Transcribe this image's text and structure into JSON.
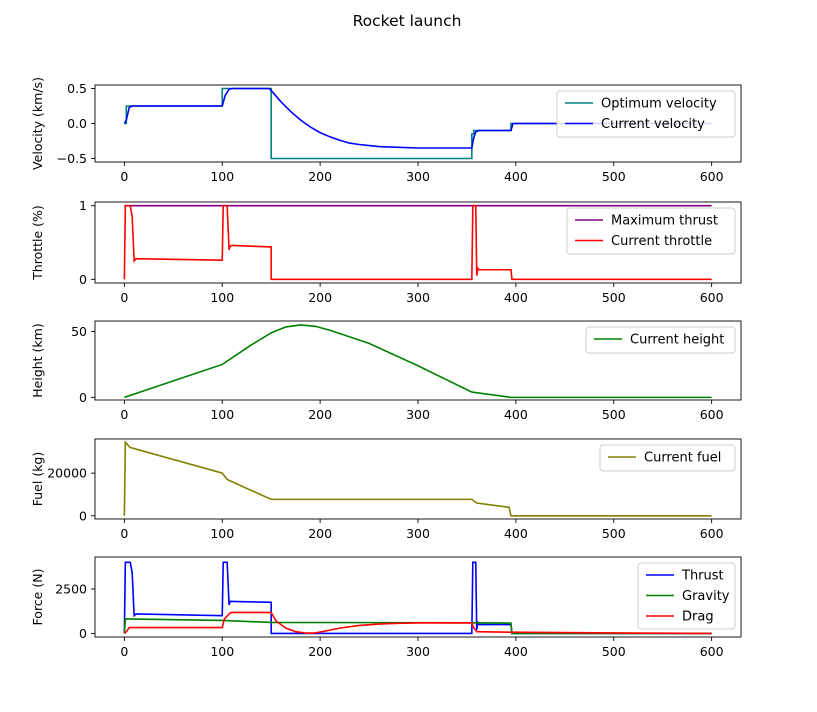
{
  "title": "Rocket launch",
  "chart_data": [
    {
      "type": "line",
      "ylabel": "Velocity (km/s)",
      "xlim": [
        -30,
        630
      ],
      "ylim": [
        -0.55,
        0.55
      ],
      "xticks": [
        0,
        100,
        200,
        300,
        400,
        500,
        600
      ],
      "yticks": [
        0.5,
        0.0,
        -0.5
      ],
      "ytick_labels": [
        "0.5",
        "0.0",
        "−0.5"
      ],
      "legend_position": "upper-right",
      "series": [
        {
          "name": "Optimum  velocity",
          "color": "#008080",
          "x": [
            0,
            2,
            2,
            100,
            100,
            150,
            150,
            355,
            355,
            357,
            357,
            395,
            395,
            600
          ],
          "y": [
            0,
            0,
            0.25,
            0.25,
            0.5,
            0.5,
            -0.5,
            -0.5,
            -0.15,
            -0.15,
            -0.1,
            -0.1,
            0,
            0
          ]
        },
        {
          "name": "Current velocity",
          "color": "#0000ff",
          "x": [
            0,
            2,
            5,
            8,
            10,
            100,
            103,
            107,
            110,
            148,
            152,
            160,
            170,
            180,
            190,
            200,
            210,
            220,
            230,
            240,
            260,
            280,
            300,
            320,
            355,
            357,
            359,
            362,
            395,
            397,
            600
          ],
          "y": [
            0,
            0.05,
            0.23,
            0.25,
            0.25,
            0.25,
            0.4,
            0.49,
            0.5,
            0.5,
            0.44,
            0.31,
            0.17,
            0.05,
            -0.05,
            -0.13,
            -0.19,
            -0.24,
            -0.28,
            -0.3,
            -0.33,
            -0.34,
            -0.35,
            -0.35,
            -0.35,
            -0.2,
            -0.12,
            -0.1,
            -0.1,
            0,
            0
          ]
        }
      ]
    },
    {
      "type": "line",
      "ylabel": "Throttle (%)",
      "xlim": [
        -30,
        630
      ],
      "ylim": [
        -0.05,
        1.05
      ],
      "xticks": [
        0,
        100,
        200,
        300,
        400,
        500,
        600
      ],
      "yticks": [
        1,
        0
      ],
      "ytick_labels": [
        "1",
        "0"
      ],
      "legend_position": "upper-right",
      "series": [
        {
          "name": "Maximum thrust",
          "color": "#800080",
          "x": [
            0,
            600
          ],
          "y": [
            1,
            1
          ]
        },
        {
          "name": "Current throttle",
          "color": "#ff0000",
          "x": [
            0,
            1,
            6,
            8,
            10,
            12,
            100,
            101,
            105,
            107,
            108,
            110,
            150,
            150,
            355,
            356,
            359,
            360,
            361,
            362,
            395,
            396,
            600
          ],
          "y": [
            0,
            1,
            1,
            0.85,
            0.25,
            0.28,
            0.26,
            1,
            1,
            0.4,
            0.45,
            0.46,
            0.44,
            0,
            0,
            1,
            1,
            0.05,
            0.15,
            0.13,
            0.13,
            0,
            0
          ]
        }
      ]
    },
    {
      "type": "line",
      "ylabel": "Height (km)",
      "xlim": [
        -30,
        630
      ],
      "ylim": [
        -2,
        58
      ],
      "xticks": [
        0,
        100,
        200,
        300,
        400,
        500,
        600
      ],
      "yticks": [
        50,
        0
      ],
      "ytick_labels": [
        "50",
        "0"
      ],
      "legend_position": "upper-right",
      "series": [
        {
          "name": "Current height",
          "color": "#008000",
          "x": [
            0,
            50,
            100,
            130,
            150,
            165,
            180,
            195,
            210,
            250,
            300,
            355,
            395,
            600
          ],
          "y": [
            0,
            12.5,
            25,
            40,
            49,
            53.5,
            55,
            54,
            51,
            41,
            24,
            4,
            0,
            0
          ]
        }
      ]
    },
    {
      "type": "line",
      "ylabel": "Fuel (kg)",
      "xlim": [
        -30,
        630
      ],
      "ylim": [
        -1500,
        36000
      ],
      "xticks": [
        0,
        100,
        200,
        300,
        400,
        500,
        600
      ],
      "yticks": [
        20000,
        0
      ],
      "ytick_labels": [
        "20000",
        "0"
      ],
      "legend_position": "upper-right",
      "series": [
        {
          "name": "Current fuel",
          "color": "#808000",
          "x": [
            0,
            1,
            6,
            100,
            105,
            150,
            355,
            360,
            393,
            395,
            600
          ],
          "y": [
            0,
            34500,
            32000,
            20000,
            17000,
            7700,
            7700,
            6000,
            4000,
            0,
            0
          ]
        }
      ]
    },
    {
      "type": "line",
      "ylabel": "Force (N)",
      "xlim": [
        -30,
        630
      ],
      "ylim": [
        -200,
        4300
      ],
      "xticks": [
        0,
        100,
        200,
        300,
        400,
        500,
        600
      ],
      "yticks": [
        2500,
        0
      ],
      "ytick_labels": [
        "2500",
        "0"
      ],
      "legend_position": "upper-right",
      "series": [
        {
          "name": "Thrust",
          "color": "#0000ff",
          "x": [
            0,
            1,
            6,
            8,
            10,
            12,
            100,
            101,
            105,
            107,
            108,
            110,
            150,
            150,
            355,
            356,
            359,
            360,
            361,
            362,
            395,
            396,
            600
          ],
          "y": [
            0,
            4000,
            4000,
            3400,
            1000,
            1100,
            1000,
            4000,
            4000,
            1600,
            1800,
            1800,
            1750,
            0,
            0,
            4000,
            4000,
            200,
            600,
            500,
            500,
            0,
            0
          ]
        },
        {
          "name": "Gravity",
          "color": "#008000",
          "x": [
            0,
            1,
            100,
            150,
            355,
            395,
            396,
            600
          ],
          "y": [
            0,
            820,
            730,
            620,
            600,
            580,
            0,
            0
          ]
        },
        {
          "name": "Drag",
          "color": "#ff0000",
          "x": [
            0,
            2,
            5,
            100,
            102,
            108,
            110,
            150,
            155,
            165,
            175,
            185,
            195,
            205,
            220,
            240,
            260,
            280,
            300,
            355,
            357,
            360,
            395,
            500,
            600
          ],
          "y": [
            0,
            100,
            330,
            330,
            800,
            1150,
            1180,
            1180,
            700,
            300,
            100,
            20,
            30,
            130,
            300,
            450,
            530,
            570,
            590,
            600,
            320,
            100,
            70,
            30,
            0
          ]
        }
      ]
    }
  ]
}
